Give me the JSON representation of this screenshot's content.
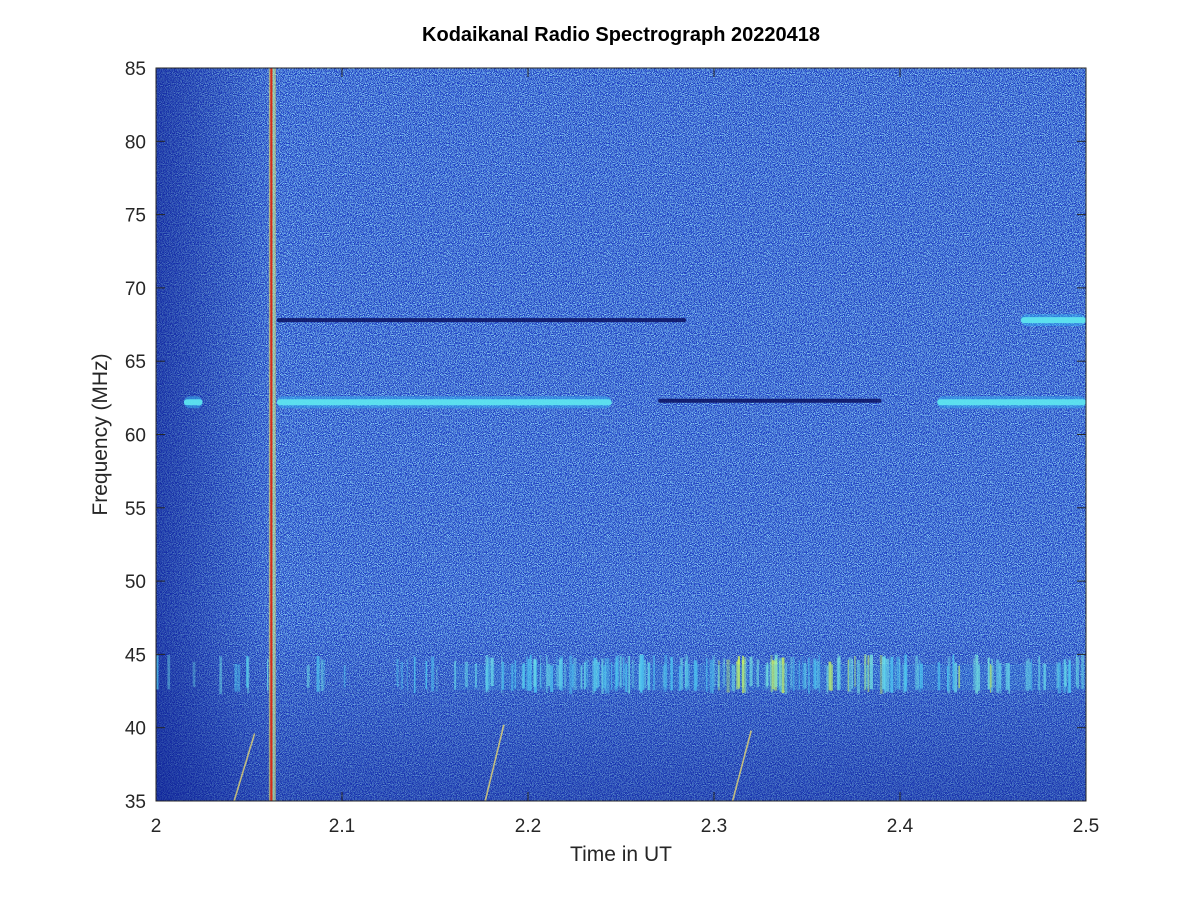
{
  "chart_data": {
    "type": "heatmap",
    "title": "Kodaikanal Radio Spectrograph  20220418",
    "xlabel": "Time in UT",
    "ylabel": "Frequency (MHz)",
    "xlim": [
      2,
      2.5
    ],
    "ylim": [
      35,
      85
    ],
    "xticks": [
      "2",
      "2.1",
      "2.2",
      "2.3",
      "2.4",
      "2.5"
    ],
    "xtick_values": [
      2.0,
      2.1,
      2.2,
      2.3,
      2.4,
      2.5
    ],
    "yticks": [
      "35",
      "40",
      "45",
      "50",
      "55",
      "60",
      "65",
      "70",
      "75",
      "80",
      "85"
    ],
    "ytick_values": [
      35,
      40,
      45,
      50,
      55,
      60,
      65,
      70,
      75,
      80,
      85
    ],
    "colormap": "jet",
    "colors": {
      "background": "#1a3ec9",
      "bright_band": "#5fe8f0",
      "dark_line": "#0a1060",
      "rfi_line": "#d42a1a"
    },
    "features": [
      {
        "name": "bright-band-62mhz-a",
        "kind": "bright",
        "t_start": 2.015,
        "t_end": 2.025,
        "freq": 62.2
      },
      {
        "name": "bright-band-62mhz-b",
        "kind": "bright",
        "t_start": 2.065,
        "t_end": 2.245,
        "freq": 62.2
      },
      {
        "name": "bright-band-62mhz-c",
        "kind": "bright",
        "t_start": 2.42,
        "t_end": 2.5,
        "freq": 62.2
      },
      {
        "name": "dark-line-62mhz",
        "kind": "dark",
        "t_start": 2.27,
        "t_end": 2.39,
        "freq": 62.3
      },
      {
        "name": "dark-line-67mhz",
        "kind": "dark",
        "t_start": 2.065,
        "t_end": 2.285,
        "freq": 67.8
      },
      {
        "name": "bright-band-67mhz",
        "kind": "bright",
        "t_start": 2.465,
        "t_end": 2.5,
        "freq": 67.8
      },
      {
        "name": "rfi-vertical-line",
        "kind": "vertical",
        "t": 2.062,
        "freq_start": 35,
        "freq_end": 85
      }
    ],
    "bursts_band": {
      "freq_low": 42.3,
      "freq_high": 45.0
    },
    "streaks": [
      {
        "t0": 2.042,
        "f0": 35,
        "t1": 2.053,
        "f1": 39.6
      },
      {
        "t0": 2.177,
        "f0": 35,
        "t1": 2.187,
        "f1": 40.2
      },
      {
        "t0": 2.31,
        "f0": 35,
        "t1": 2.32,
        "f1": 39.8
      }
    ]
  }
}
